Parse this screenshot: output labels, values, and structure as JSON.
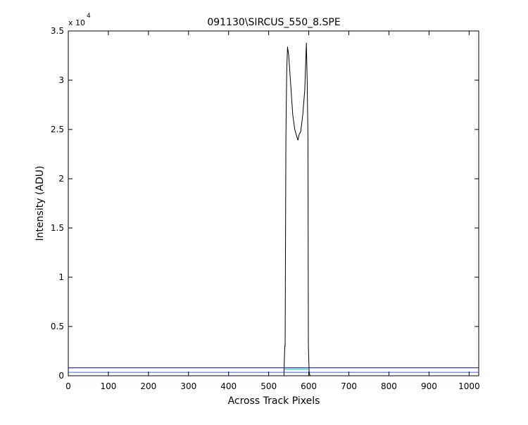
{
  "chart_data": {
    "type": "line",
    "title": "091130\\SIRCUS_550_8.SPE",
    "x_label": "Across Track Pixels",
    "y_label": "Intensity (ADU)",
    "y_multiplier": {
      "base": "x 10",
      "exponent": "4"
    },
    "xlim": [
      0,
      1024
    ],
    "xticks": [
      0,
      100,
      200,
      300,
      400,
      500,
      600,
      700,
      800,
      900,
      1000
    ],
    "ylim": [
      0,
      35000
    ],
    "yticks": [
      {
        "value": 0,
        "label": "0"
      },
      {
        "value": 5000,
        "label": "0.5"
      },
      {
        "value": 10000,
        "label": "1"
      },
      {
        "value": 15000,
        "label": "1.5"
      },
      {
        "value": 20000,
        "label": "2"
      },
      {
        "value": 25000,
        "label": "2.5"
      },
      {
        "value": 30000,
        "label": "3"
      },
      {
        "value": 35000,
        "label": "3.5"
      }
    ],
    "grid": false,
    "series": [
      {
        "color": "#000080",
        "x": [
          0,
          1024
        ],
        "values": [
          800,
          800
        ]
      },
      {
        "color": "#3a5fff",
        "x": [
          0,
          1024
        ],
        "values": [
          350,
          350
        ]
      },
      {
        "color": "#00bfbf",
        "x": [
          540,
          600
        ],
        "values": [
          650,
          650
        ]
      },
      {
        "color": "#000000",
        "x": [
          0,
          538,
          540,
          541,
          543,
          545,
          547,
          550,
          555,
          560,
          565,
          570,
          573,
          576,
          580,
          585,
          590,
          594,
          596,
          598,
          599,
          601,
          603,
          1024
        ],
        "values": [
          0,
          0,
          3000,
          3000,
          24500,
          31000,
          33400,
          32500,
          29500,
          26500,
          25000,
          24300,
          23900,
          24500,
          24800,
          26500,
          29000,
          33800,
          30000,
          24000,
          3000,
          300,
          0,
          0
        ]
      }
    ]
  }
}
